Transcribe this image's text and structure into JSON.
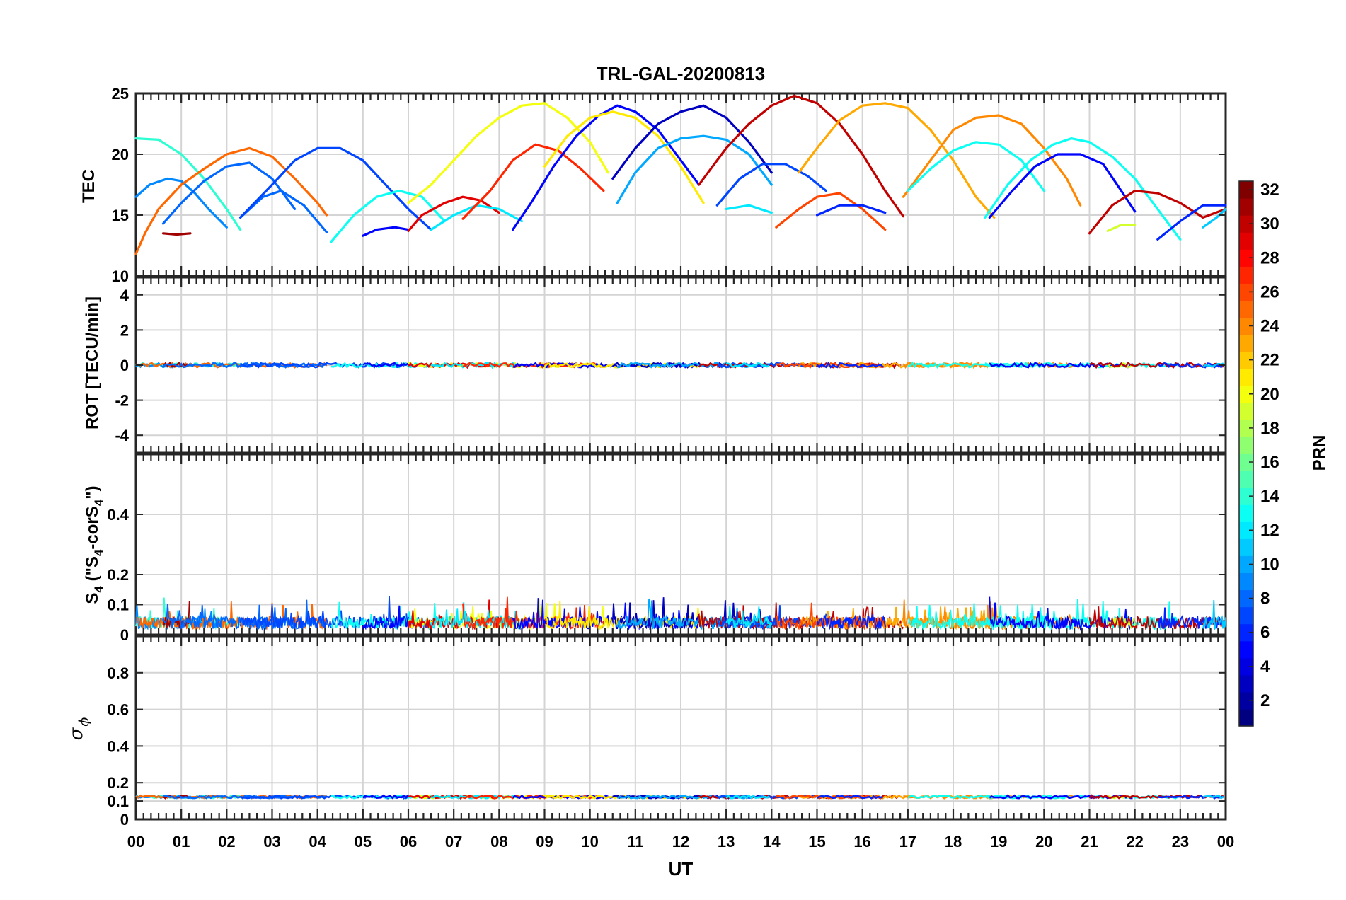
{
  "chart_data": [
    {
      "panel": "tec",
      "type": "line",
      "title": "TRL-GAL-20200813",
      "ylabel": "TEC",
      "ylim": [
        10,
        25
      ],
      "yticks": [
        "25",
        "20",
        "15",
        "10"
      ],
      "grid": true,
      "series": [
        {
          "prn": 14,
          "x": [
            0.0,
            0.5,
            1.0,
            1.5,
            2.0,
            2.3
          ],
          "y": [
            21.3,
            21.2,
            20.0,
            18.0,
            15.5,
            13.8
          ]
        },
        {
          "prn": 9,
          "x": [
            0.0,
            0.3,
            0.7,
            1.0,
            1.3,
            1.6,
            2.0
          ],
          "y": [
            16.5,
            17.5,
            18.0,
            17.8,
            16.8,
            15.5,
            14.0
          ]
        },
        {
          "prn": 25,
          "x": [
            0.0,
            0.2,
            0.5,
            1.0,
            1.5,
            2.0,
            2.5,
            3.0,
            3.5,
            4.0,
            4.2
          ],
          "y": [
            11.8,
            13.5,
            15.5,
            17.5,
            18.8,
            20.0,
            20.5,
            19.8,
            18.0,
            16.0,
            15.0
          ]
        },
        {
          "prn": 31,
          "x": [
            0.6,
            0.9,
            1.2
          ],
          "y": [
            13.5,
            13.4,
            13.5
          ]
        },
        {
          "prn": 8,
          "x": [
            0.6,
            1.0,
            1.5,
            2.0,
            2.5,
            3.0,
            3.5
          ],
          "y": [
            14.3,
            16.0,
            17.8,
            19.0,
            19.3,
            18.0,
            15.5
          ]
        },
        {
          "prn": 8,
          "x": [
            2.3,
            2.8,
            3.2,
            3.7,
            4.2
          ],
          "y": [
            14.8,
            16.5,
            17.0,
            15.8,
            13.6
          ]
        },
        {
          "prn": 7,
          "x": [
            2.3,
            3.0,
            3.5,
            4.0,
            4.5,
            5.0,
            5.5,
            6.0,
            6.5
          ],
          "y": [
            14.8,
            17.5,
            19.5,
            20.5,
            20.5,
            19.5,
            17.5,
            15.5,
            13.8
          ]
        },
        {
          "prn": 13,
          "x": [
            4.3,
            4.8,
            5.3,
            5.8,
            6.3,
            6.8
          ],
          "y": [
            12.8,
            15.0,
            16.5,
            17.0,
            16.5,
            14.5
          ]
        },
        {
          "prn": 5,
          "x": [
            5.0,
            5.3,
            5.7,
            6.0
          ],
          "y": [
            13.3,
            13.8,
            14.0,
            13.8
          ]
        },
        {
          "prn": 20,
          "x": [
            6.0,
            6.5,
            7.0,
            7.5,
            8.0,
            8.5,
            9.0,
            9.5,
            10.0,
            10.4
          ],
          "y": [
            16.0,
            17.5,
            19.5,
            21.5,
            23.0,
            24.0,
            24.2,
            23.0,
            21.0,
            18.5
          ]
        },
        {
          "prn": 29,
          "x": [
            6.0,
            6.3,
            6.8,
            7.2,
            7.6,
            8.0
          ],
          "y": [
            13.7,
            15.0,
            16.0,
            16.5,
            16.2,
            15.2
          ]
        },
        {
          "prn": 12,
          "x": [
            6.5,
            7.0,
            7.5,
            8.0,
            8.5
          ],
          "y": [
            13.8,
            15.0,
            15.8,
            15.5,
            14.5
          ]
        },
        {
          "prn": 27,
          "x": [
            7.2,
            7.8,
            8.3,
            8.8,
            9.3,
            9.8,
            10.3
          ],
          "y": [
            14.7,
            17.0,
            19.5,
            20.8,
            20.3,
            18.8,
            17.0
          ]
        },
        {
          "prn": 5,
          "x": [
            8.3,
            8.7,
            9.2,
            9.7,
            10.2,
            10.6,
            11.0,
            11.5,
            12.0,
            12.4
          ],
          "y": [
            13.8,
            16.0,
            19.0,
            21.5,
            23.2,
            24.0,
            23.5,
            22.0,
            19.5,
            17.5
          ]
        },
        {
          "prn": 21,
          "x": [
            9.0,
            9.5,
            10.0,
            10.5,
            11.0,
            11.5,
            12.0,
            12.5
          ],
          "y": [
            19.0,
            21.5,
            23.0,
            23.5,
            23.0,
            21.5,
            19.0,
            16.0
          ]
        },
        {
          "prn": 3,
          "x": [
            10.5,
            11.0,
            11.5,
            12.0,
            12.5,
            13.0,
            13.5,
            14.0
          ],
          "y": [
            18.0,
            20.5,
            22.5,
            23.5,
            24.0,
            23.0,
            21.0,
            18.5
          ]
        },
        {
          "prn": 10,
          "x": [
            10.6,
            11.0,
            11.5,
            12.0,
            12.5,
            13.0,
            13.5,
            14.0
          ],
          "y": [
            16.0,
            18.5,
            20.5,
            21.3,
            21.5,
            21.2,
            20.0,
            17.5
          ]
        },
        {
          "prn": 30,
          "x": [
            12.4,
            13.0,
            13.5,
            14.0,
            14.5,
            15.0,
            15.5,
            16.0,
            16.5,
            16.9
          ],
          "y": [
            17.5,
            20.5,
            22.5,
            24.0,
            24.8,
            24.2,
            22.5,
            20.0,
            17.0,
            14.9
          ]
        },
        {
          "prn": 7,
          "x": [
            12.8,
            13.3,
            13.8,
            14.3,
            14.8,
            15.2
          ],
          "y": [
            15.8,
            18.0,
            19.2,
            19.2,
            18.2,
            17.0
          ]
        },
        {
          "prn": 12,
          "x": [
            13.0,
            13.5,
            14.0
          ],
          "y": [
            15.5,
            15.8,
            15.2
          ]
        },
        {
          "prn": 23,
          "x": [
            14.6,
            15.0,
            15.5,
            16.0,
            16.5,
            17.0,
            17.5,
            18.0,
            18.5,
            18.9
          ],
          "y": [
            18.5,
            20.5,
            22.8,
            24.0,
            24.2,
            23.8,
            22.0,
            19.5,
            16.5,
            14.8
          ]
        },
        {
          "prn": 26,
          "x": [
            14.1,
            14.6,
            15.0,
            15.5,
            16.0,
            16.5
          ],
          "y": [
            14.0,
            15.5,
            16.5,
            16.8,
            15.5,
            13.8
          ]
        },
        {
          "prn": 6,
          "x": [
            15.0,
            15.5,
            16.0,
            16.5
          ],
          "y": [
            15.0,
            15.8,
            15.8,
            15.2
          ]
        },
        {
          "prn": 24,
          "x": [
            16.9,
            17.5,
            18.0,
            18.5,
            19.0,
            19.5,
            20.0,
            20.5,
            20.8
          ],
          "y": [
            16.5,
            19.5,
            22.0,
            23.0,
            23.2,
            22.5,
            20.5,
            18.0,
            15.8
          ]
        },
        {
          "prn": 13,
          "x": [
            17.0,
            17.5,
            18.0,
            18.5,
            19.0,
            19.5,
            20.0
          ],
          "y": [
            17.0,
            18.8,
            20.3,
            21.0,
            20.8,
            19.5,
            17.0
          ]
        },
        {
          "prn": 13,
          "x": [
            18.7,
            19.2,
            19.7,
            20.2,
            20.6,
            21.0,
            21.5,
            22.0,
            22.5,
            23.0
          ],
          "y": [
            14.8,
            17.5,
            19.5,
            20.8,
            21.3,
            21.0,
            19.8,
            18.0,
            15.5,
            13.0
          ]
        },
        {
          "prn": 5,
          "x": [
            18.8,
            19.3,
            19.8,
            20.3,
            20.8,
            21.3,
            21.7,
            22.0
          ],
          "y": [
            14.8,
            17.0,
            19.0,
            20.0,
            20.0,
            19.2,
            17.0,
            15.3
          ]
        },
        {
          "prn": 19,
          "x": [
            21.4,
            21.7,
            22.0
          ],
          "y": [
            13.7,
            14.2,
            14.2
          ]
        },
        {
          "prn": 30,
          "x": [
            21.0,
            21.5,
            22.0,
            22.5,
            23.0,
            23.5,
            24.0
          ],
          "y": [
            13.5,
            15.8,
            17.0,
            16.8,
            16.0,
            14.8,
            15.5
          ]
        },
        {
          "prn": 6,
          "x": [
            22.5,
            23.0,
            23.5,
            24.0
          ],
          "y": [
            13.0,
            14.5,
            15.8,
            15.8
          ]
        },
        {
          "prn": 11,
          "x": [
            23.5,
            23.8,
            24.0
          ],
          "y": [
            14.0,
            14.8,
            15.5
          ]
        }
      ]
    },
    {
      "panel": "rot",
      "type": "line",
      "ylabel": "ROT [TECU/min]",
      "ylim": [
        -5,
        5
      ],
      "yticks": [
        "4",
        "2",
        "0",
        "-2",
        "-4"
      ],
      "grid": true,
      "note_value": 0
    },
    {
      "panel": "s4",
      "type": "line",
      "ylabel_base": "S",
      "ylabel_sub": "4",
      "ylabel_paren_open": " (\"S",
      "ylabel_mid": "-corS",
      "ylabel_end": "\")",
      "ylim": [
        0,
        0.6
      ],
      "yticks": [
        "0.4",
        "0.2",
        "0.1",
        "0"
      ],
      "grid": true
    },
    {
      "panel": "sigma",
      "type": "line",
      "ylabel_sigma": "σ",
      "ylabel_phi": "ϕ",
      "ylim": [
        0,
        1
      ],
      "yticks": [
        "0.8",
        "0.6",
        "0.4",
        "0.2",
        "0.1",
        "0"
      ],
      "grid": true
    }
  ],
  "xaxis": {
    "label": "UT",
    "ticks": [
      "00",
      "01",
      "02",
      "03",
      "04",
      "05",
      "06",
      "07",
      "08",
      "09",
      "10",
      "11",
      "12",
      "13",
      "14",
      "15",
      "16",
      "17",
      "18",
      "19",
      "20",
      "21",
      "22",
      "23",
      "00"
    ]
  },
  "colorbar": {
    "label": "PRN",
    "range": [
      1,
      32
    ],
    "ticks": [
      "32",
      "30",
      "28",
      "26",
      "24",
      "22",
      "20",
      "18",
      "16",
      "14",
      "12",
      "10",
      "8",
      "6",
      "4",
      "2"
    ]
  }
}
